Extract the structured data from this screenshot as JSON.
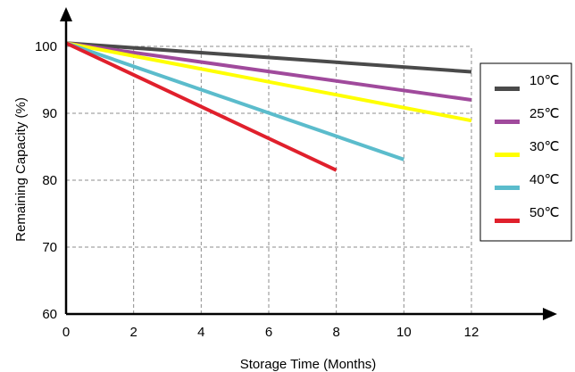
{
  "chart_data": {
    "type": "line",
    "xlabel": "Storage Time (Months)",
    "ylabel": "Remaining Capacity (%)",
    "xlim": [
      0,
      12
    ],
    "ylim": [
      60,
      100
    ],
    "x_ticks": [
      0,
      2,
      4,
      6,
      8,
      10,
      12
    ],
    "y_ticks": [
      60,
      70,
      80,
      90,
      100
    ],
    "grid": true,
    "legend_position": "right",
    "series": [
      {
        "name": "10℃",
        "color": "#4a4a4a",
        "points": [
          [
            0,
            100.5
          ],
          [
            12,
            96.2
          ]
        ]
      },
      {
        "name": "25℃",
        "color": "#a04a9c",
        "points": [
          [
            0,
            100.5
          ],
          [
            12,
            92.0
          ]
        ]
      },
      {
        "name": "30℃",
        "color": "#ffff00",
        "points": [
          [
            0,
            100.5
          ],
          [
            12,
            88.9
          ]
        ]
      },
      {
        "name": "40℃",
        "color": "#5bbccc",
        "points": [
          [
            0,
            100.5
          ],
          [
            10,
            83.1
          ]
        ]
      },
      {
        "name": "50℃",
        "color": "#e0202c",
        "points": [
          [
            0,
            100.5
          ],
          [
            8,
            81.5
          ]
        ]
      }
    ]
  }
}
